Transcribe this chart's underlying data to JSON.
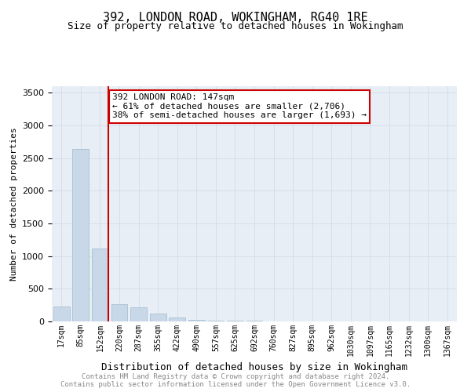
{
  "title": "392, LONDON ROAD, WOKINGHAM, RG40 1RE",
  "subtitle": "Size of property relative to detached houses in Wokingham",
  "xlabel": "Distribution of detached houses by size in Wokingham",
  "ylabel": "Number of detached properties",
  "annotation_line1": "392 LONDON ROAD: 147sqm",
  "annotation_line2": "← 61% of detached houses are smaller (2,706)",
  "annotation_line3": "38% of semi-detached houses are larger (1,693) →",
  "categories": [
    "17sqm",
    "85sqm",
    "152sqm",
    "220sqm",
    "287sqm",
    "355sqm",
    "422sqm",
    "490sqm",
    "557sqm",
    "625sqm",
    "692sqm",
    "760sqm",
    "827sqm",
    "895sqm",
    "962sqm",
    "1030sqm",
    "1097sqm",
    "1165sqm",
    "1232sqm",
    "1300sqm",
    "1367sqm"
  ],
  "bar_values": [
    230,
    2640,
    1120,
    270,
    220,
    120,
    55,
    30,
    18,
    10,
    8,
    5,
    4,
    3,
    3,
    2,
    2,
    1,
    1,
    1,
    1
  ],
  "bar_color": "#c8d8e8",
  "bar_edge_color": "#a0b8cc",
  "grid_color": "#d0d8e8",
  "bg_color": "#e8eef5",
  "vline_color": "#cc0000",
  "vline_x_index": 2,
  "annotation_box_color": "#ffffff",
  "annotation_box_edge": "#cc0000",
  "footer_line1": "Contains HM Land Registry data © Crown copyright and database right 2024.",
  "footer_line2": "Contains public sector information licensed under the Open Government Licence v3.0.",
  "ylim": [
    0,
    3600
  ],
  "yticks": [
    0,
    500,
    1000,
    1500,
    2000,
    2500,
    3000,
    3500
  ]
}
